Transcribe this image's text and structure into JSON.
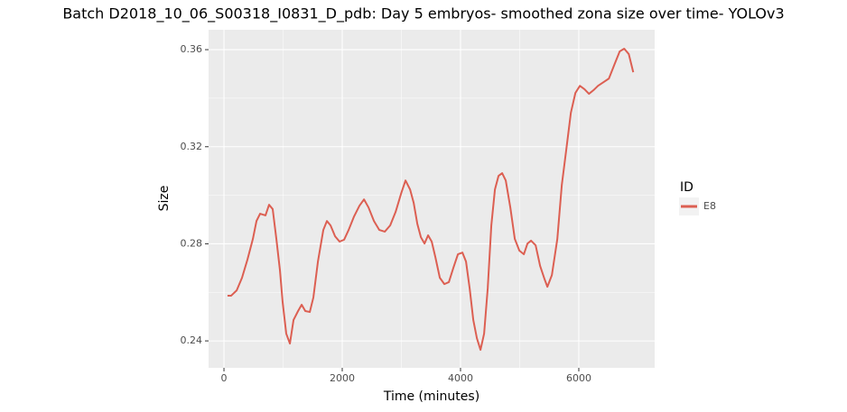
{
  "chart_data": {
    "type": "line",
    "title": "Batch D2018_10_06_S00318_I0831_D_pdb: Day 5 embryos- smoothed zona size over time- YOLOv3",
    "x_label": "Time (minutes)",
    "y_label": "Size",
    "legend_title": "ID",
    "legend_position": "right",
    "grid": true,
    "xlim": [
      -260,
      7283
    ],
    "ylim": [
      0.2289,
      0.3682
    ],
    "xticks": [
      0,
      2000,
      4000,
      6000
    ],
    "yticks": [
      0.24,
      0.28,
      0.32,
      0.36
    ],
    "minor_xticks": [
      1000,
      3000,
      5000
    ],
    "minor_yticks": [
      0.26,
      0.3,
      0.34
    ],
    "x": [
      60,
      120,
      215,
      305,
      397,
      489,
      550,
      611,
      702,
      763,
      824,
      886,
      947,
      992,
      1053,
      1115,
      1176,
      1253,
      1314,
      1375,
      1451,
      1512,
      1589,
      1680,
      1741,
      1802,
      1879,
      1955,
      2032,
      2108,
      2200,
      2291,
      2368,
      2444,
      2536,
      2627,
      2719,
      2811,
      2902,
      2994,
      3070,
      3147,
      3208,
      3269,
      3330,
      3391,
      3452,
      3513,
      3574,
      3650,
      3727,
      3803,
      3879,
      3956,
      4032,
      4093,
      4155,
      4216,
      4277,
      4338,
      4399,
      4460,
      4521,
      4582,
      4643,
      4704,
      4765,
      4842,
      4918,
      4995,
      5071,
      5132,
      5193,
      5270,
      5346,
      5423,
      5469,
      5545,
      5637,
      5713,
      5790,
      5866,
      5943,
      6019,
      6096,
      6172,
      6249,
      6325,
      6417,
      6509,
      6600,
      6692,
      6768,
      6845,
      6921
    ],
    "series": [
      {
        "name": "E8",
        "color": "#dc5f52",
        "values": [
          0.2586,
          0.2586,
          0.2608,
          0.266,
          0.2735,
          0.282,
          0.2894,
          0.2924,
          0.2917,
          0.2961,
          0.2943,
          0.282,
          0.269,
          0.256,
          0.243,
          0.2389,
          0.2486,
          0.2523,
          0.2549,
          0.2523,
          0.2519,
          0.2579,
          0.2727,
          0.2857,
          0.2894,
          0.2876,
          0.2831,
          0.2809,
          0.2817,
          0.2857,
          0.2913,
          0.2957,
          0.2983,
          0.295,
          0.2894,
          0.2857,
          0.285,
          0.2876,
          0.2931,
          0.3006,
          0.3061,
          0.3024,
          0.2969,
          0.2883,
          0.2827,
          0.2801,
          0.2835,
          0.2809,
          0.2746,
          0.266,
          0.2634,
          0.2642,
          0.2701,
          0.2757,
          0.2764,
          0.2727,
          0.2616,
          0.2486,
          0.2411,
          0.2363,
          0.243,
          0.2616,
          0.2876,
          0.3024,
          0.308,
          0.3091,
          0.3061,
          0.295,
          0.282,
          0.2772,
          0.2757,
          0.2801,
          0.2813,
          0.2794,
          0.2709,
          0.2653,
          0.2623,
          0.2671,
          0.282,
          0.3043,
          0.3191,
          0.334,
          0.3422,
          0.3451,
          0.3437,
          0.3418,
          0.3433,
          0.3451,
          0.3466,
          0.3481,
          0.3537,
          0.3593,
          0.3604,
          0.3582,
          0.3507
        ]
      }
    ]
  }
}
